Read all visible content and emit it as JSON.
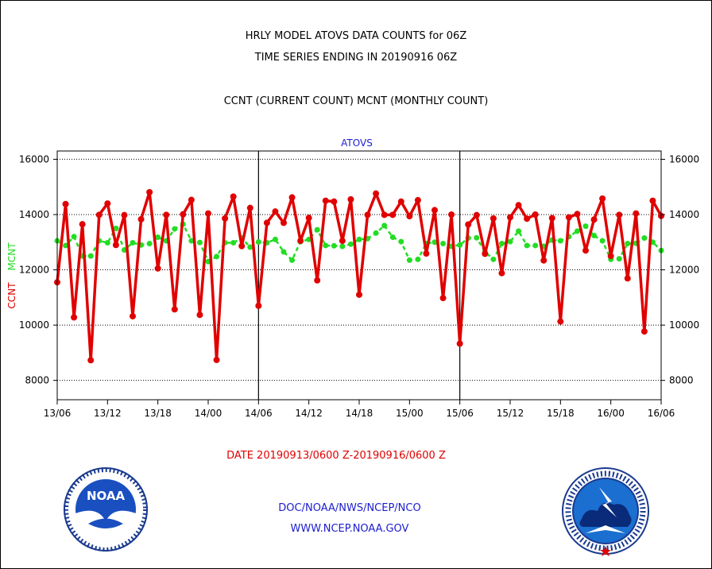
{
  "header": {
    "line1": "HRLY MODEL ATOVS DATA COUNTS for 06Z",
    "line2": "TIME SERIES ENDING IN 20190916 06Z",
    "line3": "CCNT (CURRENT COUNT) MCNT (MONTHLY COUNT)"
  },
  "footer": {
    "date_range": "DATE 20190913/0600 Z-20190916/0600 Z",
    "org": "DOC/NOAA/NWS/NCEP/NCO",
    "url": "WWW.NCEP.NOAA.GOV"
  },
  "logos": {
    "left": {
      "icon": "noaa-logo",
      "text": "NOAA"
    },
    "right": {
      "icon": "national-weather-service-logo"
    }
  },
  "colors": {
    "ccnt": "#e00000",
    "mcnt": "#22dd22",
    "title": "#1c1cd0"
  },
  "chart_data": {
    "type": "line",
    "title": "ATOVS",
    "ylabel_ccnt": "CCNT",
    "ylabel_mcnt": "MCNT",
    "xlabel": "",
    "x_range_hours": [
      0,
      72
    ],
    "ylim": [
      7300,
      16300
    ],
    "y_ticks": [
      8000,
      10000,
      12000,
      14000,
      16000
    ],
    "y_tick_labels": [
      "8000",
      "10000",
      "12000",
      "14000",
      "16000"
    ],
    "x_ticks_hours": [
      0,
      6,
      12,
      18,
      24,
      30,
      36,
      42,
      48,
      54,
      60,
      66,
      72
    ],
    "x_tick_labels": [
      "13/06",
      "13/12",
      "13/18",
      "14/00",
      "14/06",
      "14/12",
      "14/18",
      "15/00",
      "15/06",
      "15/12",
      "15/18",
      "16/00",
      "16/06"
    ],
    "day_separators_hours": [
      24,
      48
    ],
    "grid": "horizontal-dotted",
    "series": [
      {
        "name": "CCNT",
        "color": "#e00000",
        "values": [
          11550,
          14380,
          10280,
          13650,
          8730,
          13990,
          14400,
          12900,
          13980,
          10320,
          13830,
          14810,
          12050,
          13990,
          10570,
          14010,
          14530,
          10370,
          14040,
          8740,
          13860,
          14650,
          12860,
          14240,
          10700,
          13700,
          14110,
          13700,
          14620,
          13050,
          13880,
          11620,
          14500,
          14470,
          13050,
          14550,
          11100,
          13990,
          14760,
          13990,
          13990,
          14470,
          13940,
          14520,
          12590,
          14160,
          10980,
          14000,
          9330,
          13640,
          13980,
          12580,
          13860,
          11880,
          13900,
          14340,
          13850,
          14000,
          12340,
          13870,
          10130,
          13900,
          14020,
          12700,
          13820,
          14580,
          12500,
          13990,
          11690,
          14040,
          9770,
          14500,
          13950
        ]
      },
      {
        "name": "MCNT",
        "color": "#22dd22",
        "values": [
          13050,
          12880,
          13200,
          12500,
          12500,
          13050,
          12980,
          13500,
          12720,
          12980,
          12900,
          12950,
          13180,
          13050,
          13480,
          13650,
          13050,
          12990,
          12300,
          12480,
          12980,
          12980,
          13150,
          12820,
          13010,
          12980,
          13100,
          12650,
          12350,
          13020,
          13100,
          13450,
          12880,
          12870,
          12850,
          12930,
          13100,
          13130,
          13330,
          13600,
          13180,
          13020,
          12350,
          12380,
          12950,
          13000,
          12950,
          12850,
          12900,
          13150,
          13160,
          12650,
          12380,
          12950,
          13020,
          13400,
          12880,
          12880,
          12850,
          13080,
          13050,
          13200,
          13400,
          13580,
          13240,
          13050,
          12380,
          12400,
          12950,
          12960,
          13150,
          13000,
          12700
        ]
      }
    ]
  }
}
